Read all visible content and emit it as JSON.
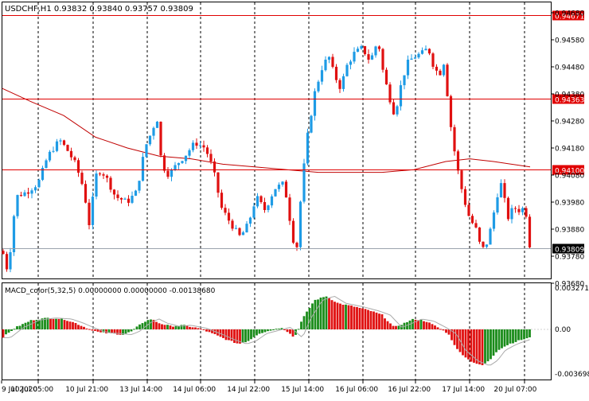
{
  "main_header": "USDCHF,H1  0.93832 0.93840 0.93757 0.93809",
  "macd_header": "MACD_color(5,32,5) 0.00000000 0.00000000 -0.00138680",
  "price_axis_labels": [
    "0.94680",
    "0.94580",
    "0.94480",
    "0.94380",
    "0.94280",
    "0.94180",
    "0.94080",
    "0.93980",
    "0.93880",
    "0.93780",
    "0.93680"
  ],
  "macd_axis_labels": [
    "0.0032710",
    "0.00",
    "-0.0036980"
  ],
  "time_axis_labels": [
    "9 Jul 2020",
    "10 Jul 05:00",
    "10 Jul 21:00",
    "13 Jul 14:00",
    "14 Jul 06:00",
    "14 Jul 22:00",
    "15 Jul 14:00",
    "16 Jul 06:00",
    "16 Jul 22:00",
    "17 Jul 14:00",
    "20 Jul 07:00"
  ],
  "horizontal_levels": [
    {
      "price": "0.94671",
      "value": 0.94671,
      "color": "#e00000",
      "label_text_color": "#ffffff"
    },
    {
      "price": "0.94363",
      "value": 0.94363,
      "color": "#e00000",
      "label_text_color": "#ffffff"
    },
    {
      "price": "0.94100",
      "value": 0.941,
      "color": "#e00000",
      "label_text_color": "#ffffff"
    }
  ],
  "current_price": {
    "price": "0.93809",
    "value": 0.93809,
    "line_color": "#9aa3ad",
    "label_bg": "#000000",
    "label_text_color": "#ffffff"
  },
  "colors": {
    "bull": "#1e9be5",
    "bear": "#e01010",
    "ma": "#c00000",
    "grid": "#000000",
    "macd_up": "#1a8c1a",
    "macd_down": "#e01010",
    "signal": "#aaaaaa",
    "background": "#ffffff"
  },
  "chart_data": [
    {
      "type": "line",
      "title": "USDCHF,H1",
      "ylim": [
        0.9366,
        0.9474
      ],
      "series": [
        {
          "name": "USDCHF"
        }
      ]
    },
    {
      "type": "bar",
      "title": "MACD_color(5,32,5)",
      "ylim": [
        -0.004,
        0.0034
      ]
    }
  ]
}
